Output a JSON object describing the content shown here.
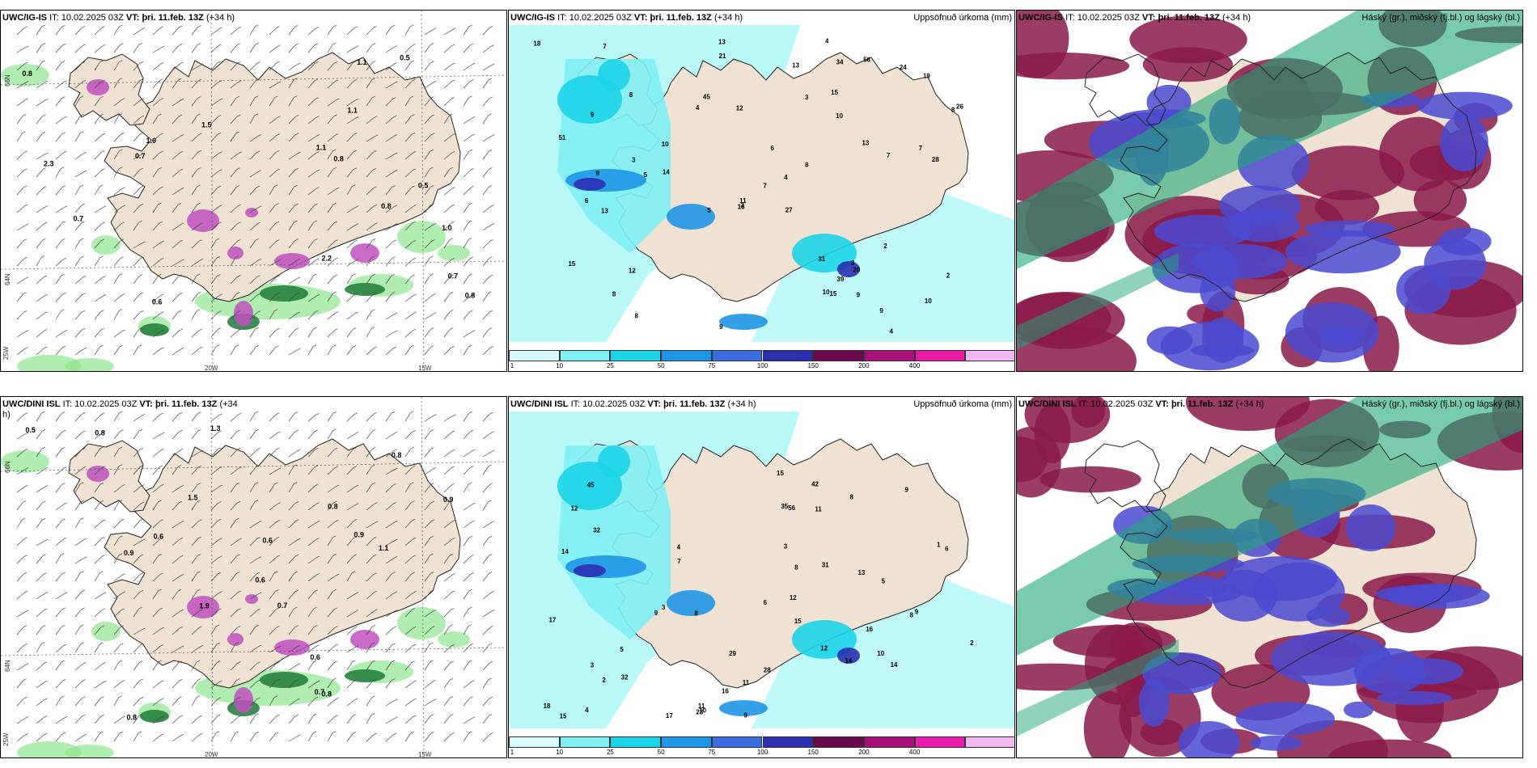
{
  "panels": {
    "ig_wind": {
      "model": "UWC/IG-IS",
      "it_label": "IT:",
      "it_value": "10.02.2025 03Z",
      "vt_label": "VT:",
      "vt_value": "þri. 11.feb. 13Z",
      "lead": "(+34 h)"
    },
    "ig_precip": {
      "model": "UWC/IG-IS",
      "it_label": "IT:",
      "it_value": "10.02.2025 03Z",
      "vt_label": "VT:",
      "vt_value": "þri. 11.feb. 13Z",
      "lead": "(+34 h)",
      "right_title": "Uppsöfnuð úrkoma (mm)"
    },
    "ig_cloud": {
      "model": "UWC/IG-IS",
      "it_label": "IT:",
      "it_value": "10.02.2025 03Z",
      "vt_label": "VT:",
      "vt_value": "þri. 11.feb. 13Z",
      "lead": "(+34 h)",
      "right_title": "Háský (gr.), miðský (fj.bl.) og lágský (bl.)"
    },
    "dini_wind": {
      "model": "UWC/DINI ISL",
      "it_label": "IT:",
      "it_value": "10.02.2025 03Z",
      "vt_label": "VT:",
      "vt_value": "þri. 11.feb. 13Z",
      "lead": "(+34 h)"
    },
    "dini_precip": {
      "model": "UWC/DINI ISL",
      "it_label": "IT:",
      "it_value": "10.02.2025 03Z",
      "vt_label": "VT:",
      "vt_value": "þri. 11.feb. 13Z",
      "lead": "(+34 h)",
      "right_title": "Uppsöfnuð úrkoma (mm)"
    },
    "dini_cloud": {
      "model": "UWC/DINI ISL",
      "it_label": "IT:",
      "it_value": "10.02.2025 03Z",
      "vt_label": "VT:",
      "vt_value": "þri. 11.feb. 13Z",
      "lead": "(+34 h)",
      "right_title": "Háský (gr.), miðský (fj.bl.) og lágský (bl.)"
    }
  },
  "axis_labels": {
    "lon_20": "20W",
    "lon_15": "15W",
    "lon_25": "25W",
    "lat_66": "66N",
    "lat_64": "64N"
  },
  "colorbar": {
    "ticks": [
      "1",
      "10",
      "25",
      "50",
      "75",
      "100",
      "150",
      "200",
      "400"
    ],
    "colors": [
      "#d8fafa",
      "#7ff0f4",
      "#1cd4e8",
      "#1f96e6",
      "#3a6ee0",
      "#2b2fb0",
      "#6a0a4c",
      "#a8107a",
      "#e81ca8",
      "#f2b8f0"
    ]
  },
  "colors": {
    "land": "#efe2d2",
    "sea_precip": "#b8f8f8",
    "wind_green": "#8ee58e",
    "hail_magenta": "#c050c0",
    "cloud_high": "#1fa878",
    "cloud_mid": "#8a1a4a",
    "cloud_low": "#4a4ad0"
  },
  "labels": {
    "ig_wind": [
      "1.0",
      "0.7",
      "0.8",
      "0.5",
      "0.5",
      "0.7",
      "0.8",
      "1.1",
      "2.2",
      "2.3",
      "1.0",
      "0.8",
      "0.6",
      "0.8",
      "1.5",
      "1.1",
      "1.1",
      "0.7"
    ],
    "dini_wind": [
      "0.5",
      "0.6",
      "0.7",
      "0.6",
      "1.5",
      "0.6",
      "0.7",
      "0.6",
      "0.9",
      "0.8",
      "0.8",
      "0.9",
      "1.3",
      "0.8",
      "0.9",
      "0.8",
      "1.9",
      "1.1",
      "0.8"
    ],
    "ig_precip": [
      "18",
      "6",
      "10",
      "10",
      "4",
      "7",
      "27",
      "31",
      "8",
      "7",
      "10",
      "3",
      "13",
      "24",
      "13",
      "15",
      "5",
      "7",
      "8",
      "56",
      "9",
      "16",
      "8",
      "19",
      "34",
      "51",
      "4",
      "12",
      "20",
      "9",
      "21",
      "3",
      "2",
      "3",
      "4",
      "5",
      "6",
      "8",
      "11",
      "14",
      "15",
      "28",
      "12",
      "13",
      "7",
      "26",
      "9",
      "3",
      "15",
      "2",
      "9",
      "8",
      "13",
      "45",
      "39",
      "9",
      "10",
      "4"
    ],
    "dini_precip": [
      "16",
      "4",
      "3",
      "8",
      "1",
      "6",
      "29",
      "35",
      "5",
      "9",
      "16",
      "9",
      "15",
      "8",
      "14",
      "15",
      "3",
      "4",
      "13",
      "12",
      "56",
      "17",
      "14",
      "32",
      "31",
      "11",
      "23",
      "12",
      "5",
      "8",
      "2",
      "11",
      "45",
      "42",
      "17",
      "7",
      "10",
      "9",
      "6",
      "3",
      "2",
      "18",
      "28",
      "11",
      "32",
      "12",
      "14",
      "8",
      "15",
      "10",
      "9"
    ]
  }
}
